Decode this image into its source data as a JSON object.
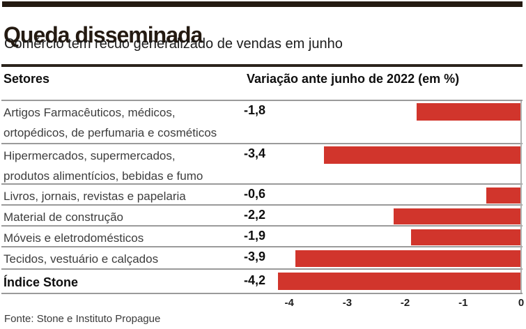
{
  "header": {
    "title": "Queda disseminada",
    "subtitle": "Comércio tem recuo generalizado de vendas em junho"
  },
  "table": {
    "col_sectors": "Setores",
    "col_variation": "Variação ante junho de 2022 (em %)"
  },
  "rows": [
    {
      "lines": [
        "Artigos Farmacêuticos, médicos,",
        "ortopédicos, de perfumaria e cosméticos"
      ],
      "value_label": "-1,8"
    },
    {
      "lines": [
        "Hipermercados, supermercados,",
        "produtos alimentícios, bebidas e fumo"
      ],
      "value_label": "-3,4"
    },
    {
      "lines": [
        "Livros, jornais, revistas e papelaria"
      ],
      "value_label": "-0,6"
    },
    {
      "lines": [
        "Material de construção"
      ],
      "value_label": "-2,2"
    },
    {
      "lines": [
        "Móveis e eletrodomésticos"
      ],
      "value_label": "-1,9"
    },
    {
      "lines": [
        "Tecidos, vestuário e calçados"
      ],
      "value_label": "-3,9"
    },
    {
      "lines": [
        "Índice Stone"
      ],
      "value_label": "-4,2"
    }
  ],
  "chart_data": {
    "type": "bar",
    "orientation": "horizontal",
    "title": "Queda disseminada",
    "subtitle": "Comércio tem recuo generalizado de vendas em junho",
    "xlabel": "Variação ante junho de 2022 (em %)",
    "categories": [
      "Artigos Farmacêuticos, médicos, ortopédicos, de perfumaria e cosméticos",
      "Hipermercados, supermercados, produtos alimentícios, bebidas e fumo",
      "Livros, jornais, revistas e papelaria",
      "Material de construção",
      "Móveis e eletrodomésticos",
      "Tecidos, vestuário e calçados",
      "Índice Stone"
    ],
    "values": [
      -1.8,
      -3.4,
      -0.6,
      -2.2,
      -1.9,
      -3.9,
      -4.2
    ],
    "xlim": [
      -4.3,
      0
    ],
    "x_ticks": [
      -4,
      -3,
      -2,
      -1,
      0
    ],
    "x_tick_labels": [
      "-4",
      "-3",
      "-2",
      "-1",
      "0"
    ],
    "grid": false,
    "legend": false,
    "bar_color": "#d1352c"
  },
  "footer": {
    "source": "Fonte: Stone e Instituto Propague"
  }
}
